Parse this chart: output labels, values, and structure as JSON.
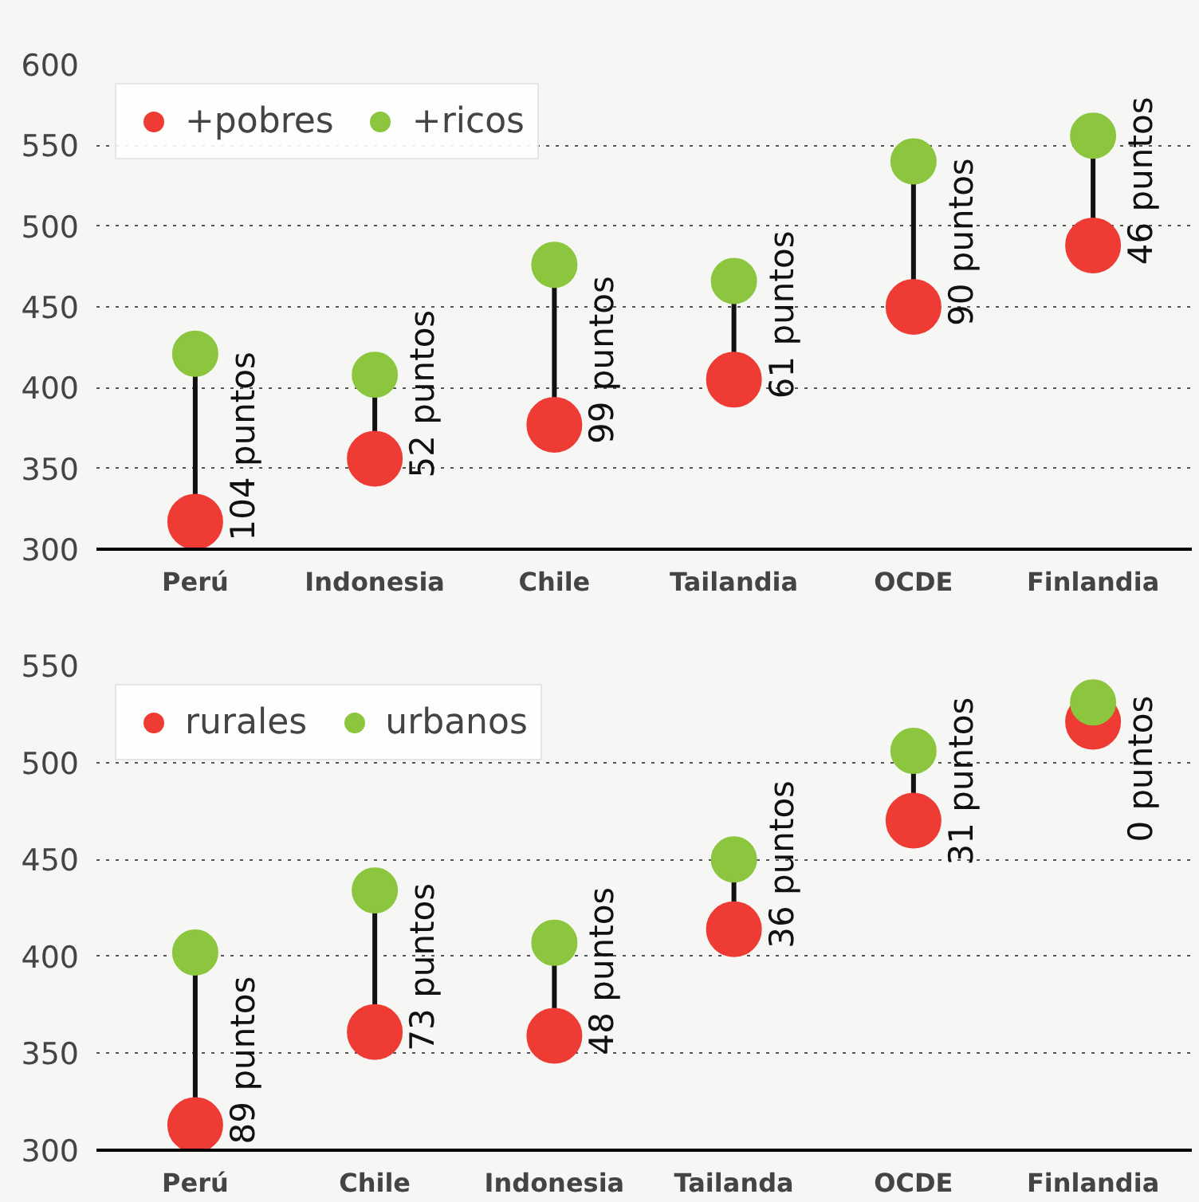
{
  "chart_data": [
    {
      "type": "scatter",
      "categories": [
        "Perú",
        "Indonesia",
        "Chile",
        "Tailandia",
        "OCDE",
        "Finlandia"
      ],
      "series": [
        {
          "name": "+pobres",
          "color": "#ee3b33",
          "values": [
            317,
            356,
            377,
            405,
            450,
            488
          ]
        },
        {
          "name": "+ricos",
          "color": "#8cc63f",
          "values": [
            421,
            408,
            476,
            466,
            540,
            556
          ]
        }
      ],
      "ylim": [
        300,
        600
      ],
      "yticks": [
        300,
        350,
        400,
        450,
        500,
        550,
        600
      ],
      "grid": "y",
      "legend": "top left",
      "marker": "circle",
      "annotations": [
        {
          "text": "104 puntos",
          "x": "Perú",
          "y": 317
        },
        {
          "text": "52 puntos",
          "x": "Indonesia",
          "y": 356
        },
        {
          "text": "99 puntos",
          "x": "Chile",
          "y": 377
        },
        {
          "text": "61 puntos",
          "x": "Tailandia",
          "y": 405
        },
        {
          "text": "90 puntos",
          "x": "OCDE",
          "y": 450
        },
        {
          "text": "46 puntos",
          "x": "Finlandia",
          "y": 488
        }
      ]
    },
    {
      "type": "scatter",
      "categories": [
        "Perú",
        "Chile",
        "Indonesia",
        "Tailanda",
        "OCDE",
        "Finlandia"
      ],
      "series": [
        {
          "name": "rurales",
          "color": "#ee3b33",
          "values": [
            313,
            361,
            359,
            414,
            470,
            521
          ]
        },
        {
          "name": "urbanos",
          "color": "#8cc63f",
          "values": [
            402,
            434,
            407,
            450,
            506,
            531
          ]
        }
      ],
      "ylim": [
        300,
        550
      ],
      "yticks": [
        300,
        350,
        400,
        450,
        500,
        550
      ],
      "grid": "y",
      "legend": "top left",
      "marker": "circle",
      "annotations": [
        {
          "text": "89 puntos",
          "x": "Perú",
          "y": 313
        },
        {
          "text": "73 puntos",
          "x": "Chile",
          "y": 361
        },
        {
          "text": "48 puntos",
          "x": "Indonesia",
          "y": 359
        },
        {
          "text": "36 puntos",
          "x": "Tailanda",
          "y": 414
        },
        {
          "text": "31 puntos",
          "x": "OCDE",
          "y": 470
        },
        {
          "text": "0 puntos",
          "x": "Finlandia",
          "y": 521
        }
      ]
    }
  ]
}
